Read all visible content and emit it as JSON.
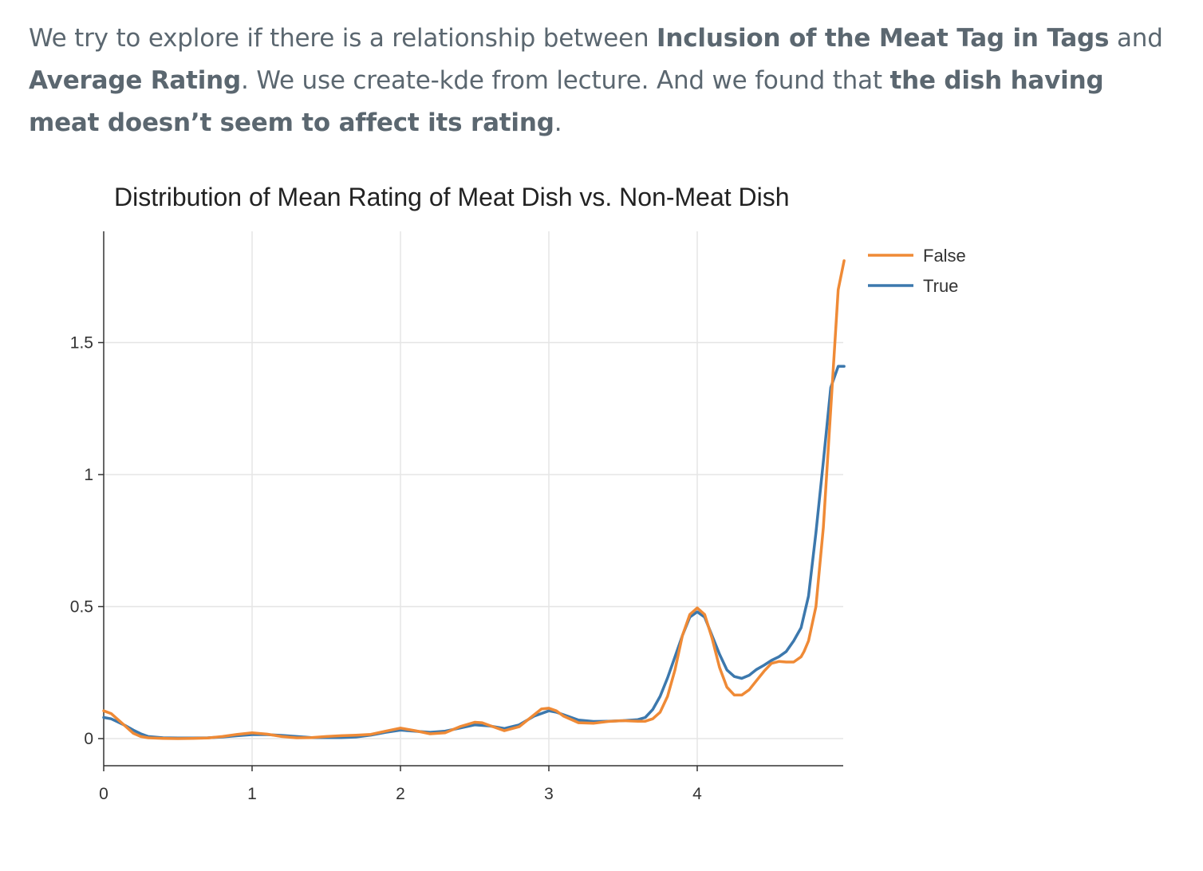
{
  "text": {
    "p1": "We try to explore if there is a relationship between ",
    "b1": "Inclusion of the Meat Tag in Tags",
    "p2": " and ",
    "b2": "Average Rating",
    "p3": ". We use create-kde from lecture. And we found that ",
    "b3": "the dish having meat doesn’t seem to affect its rating",
    "p4": "."
  },
  "chart_data": {
    "type": "line",
    "title": "Distribution of Mean Rating of Meat Dish vs. Non-Meat Dish",
    "xlabel": "",
    "ylabel": "",
    "xlim": [
      0,
      5
    ],
    "ylim": [
      -0.1,
      1.92
    ],
    "xticks": [
      0,
      1,
      2,
      3,
      4
    ],
    "xtick_labels": [
      "0",
      "1",
      "2",
      "3",
      "4"
    ],
    "yticks": [
      0,
      0.5,
      1,
      1.5
    ],
    "ytick_labels": [
      "0",
      "0.5",
      "1",
      "1.5"
    ],
    "grid": true,
    "legend_position": "top-right",
    "series": [
      {
        "name": "False",
        "color": "#ef8a36",
        "x": [
          0,
          0.05,
          0.1,
          0.15,
          0.2,
          0.25,
          0.3,
          0.4,
          0.5,
          0.6,
          0.7,
          0.8,
          0.9,
          1.0,
          1.1,
          1.2,
          1.3,
          1.4,
          1.5,
          1.6,
          1.7,
          1.8,
          1.9,
          2.0,
          2.1,
          2.2,
          2.3,
          2.4,
          2.5,
          2.55,
          2.6,
          2.7,
          2.8,
          2.9,
          2.95,
          3.0,
          3.05,
          3.1,
          3.2,
          3.3,
          3.4,
          3.5,
          3.6,
          3.65,
          3.7,
          3.75,
          3.8,
          3.85,
          3.9,
          3.95,
          4.0,
          4.05,
          4.1,
          4.15,
          4.2,
          4.25,
          4.3,
          4.35,
          4.4,
          4.45,
          4.5,
          4.55,
          4.6,
          4.65,
          4.7,
          4.72,
          4.75,
          4.8,
          4.85,
          4.9,
          4.95,
          4.99
        ],
        "y": [
          0.105,
          0.095,
          0.07,
          0.045,
          0.02,
          0.008,
          0.003,
          0.001,
          0.0,
          0.001,
          0.002,
          0.008,
          0.016,
          0.022,
          0.017,
          0.008,
          0.003,
          0.004,
          0.008,
          0.011,
          0.013,
          0.016,
          0.028,
          0.04,
          0.03,
          0.018,
          0.022,
          0.045,
          0.062,
          0.06,
          0.05,
          0.03,
          0.045,
          0.09,
          0.112,
          0.115,
          0.105,
          0.085,
          0.06,
          0.058,
          0.065,
          0.068,
          0.066,
          0.066,
          0.075,
          0.1,
          0.16,
          0.26,
          0.39,
          0.47,
          0.495,
          0.47,
          0.38,
          0.27,
          0.195,
          0.165,
          0.165,
          0.185,
          0.22,
          0.255,
          0.285,
          0.292,
          0.29,
          0.29,
          0.31,
          0.33,
          0.37,
          0.5,
          0.8,
          1.25,
          1.7,
          1.81
        ]
      },
      {
        "name": "True",
        "color": "#3c78ad",
        "x": [
          0,
          0.05,
          0.1,
          0.15,
          0.2,
          0.25,
          0.3,
          0.4,
          0.5,
          0.6,
          0.7,
          0.8,
          0.9,
          1.0,
          1.1,
          1.2,
          1.3,
          1.4,
          1.5,
          1.6,
          1.7,
          1.8,
          1.9,
          2.0,
          2.1,
          2.2,
          2.3,
          2.4,
          2.5,
          2.6,
          2.7,
          2.8,
          2.9,
          3.0,
          3.05,
          3.1,
          3.2,
          3.3,
          3.4,
          3.5,
          3.6,
          3.65,
          3.7,
          3.75,
          3.8,
          3.85,
          3.9,
          3.95,
          4.0,
          4.05,
          4.1,
          4.15,
          4.2,
          4.25,
          4.3,
          4.35,
          4.4,
          4.45,
          4.5,
          4.55,
          4.6,
          4.65,
          4.7,
          4.75,
          4.8,
          4.85,
          4.9,
          4.95,
          4.99
        ],
        "y": [
          0.08,
          0.075,
          0.062,
          0.048,
          0.032,
          0.018,
          0.008,
          0.003,
          0.002,
          0.002,
          0.003,
          0.006,
          0.011,
          0.015,
          0.015,
          0.012,
          0.008,
          0.004,
          0.004,
          0.004,
          0.006,
          0.013,
          0.024,
          0.032,
          0.028,
          0.024,
          0.028,
          0.04,
          0.052,
          0.048,
          0.038,
          0.052,
          0.085,
          0.105,
          0.1,
          0.09,
          0.07,
          0.065,
          0.066,
          0.068,
          0.072,
          0.08,
          0.11,
          0.16,
          0.23,
          0.31,
          0.39,
          0.46,
          0.48,
          0.46,
          0.39,
          0.32,
          0.26,
          0.235,
          0.228,
          0.24,
          0.262,
          0.278,
          0.296,
          0.31,
          0.33,
          0.37,
          0.42,
          0.54,
          0.78,
          1.05,
          1.33,
          1.41,
          1.41
        ]
      }
    ]
  }
}
